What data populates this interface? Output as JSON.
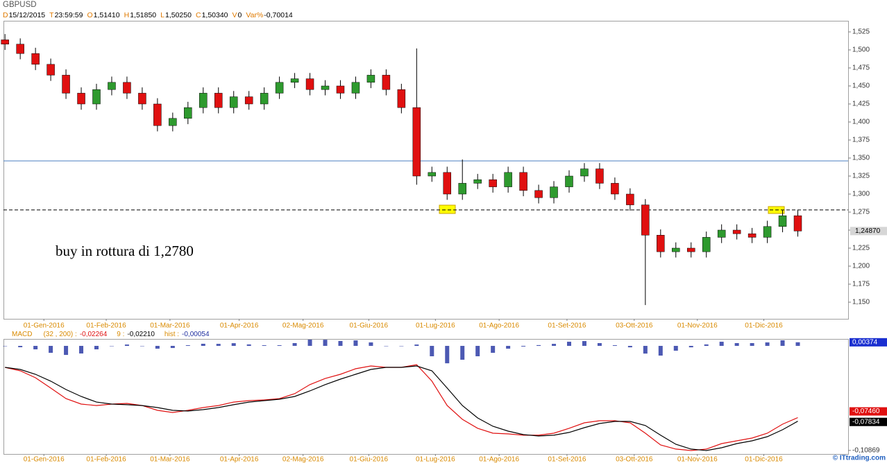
{
  "chart_data": [
    {
      "type": "candlestick",
      "title": "GBPUSD",
      "info": [
        {
          "key": "D",
          "value": "15/12/2015"
        },
        {
          "key": "T",
          "value": "23:59:59"
        },
        {
          "key": "O",
          "value": "1,51410"
        },
        {
          "key": "H",
          "value": "1,51850"
        },
        {
          "key": "L",
          "value": "1,50250"
        },
        {
          "key": "C",
          "value": "1,50340"
        },
        {
          "key": "V",
          "value": "0"
        },
        {
          "key": "Var%",
          "value": "-0,70014"
        }
      ],
      "annotation": "buy in rottura di 1,2780",
      "x": [
        0,
        1,
        2,
        3,
        4,
        5,
        6,
        7,
        8,
        9,
        10,
        11,
        12,
        13,
        14,
        15,
        16,
        17,
        18,
        19,
        20,
        21,
        22,
        23,
        24,
        25,
        26,
        27,
        28,
        29,
        30,
        31,
        32,
        33,
        34,
        35,
        36,
        37,
        38,
        39,
        40,
        41,
        42,
        43,
        44,
        45,
        46,
        47,
        48,
        49,
        50,
        51,
        52
      ],
      "open": [
        1.514,
        1.508,
        1.495,
        1.48,
        1.465,
        1.44,
        1.425,
        1.445,
        1.455,
        1.44,
        1.425,
        1.395,
        1.405,
        1.42,
        1.44,
        1.42,
        1.435,
        1.425,
        1.44,
        1.455,
        1.46,
        1.445,
        1.45,
        1.44,
        1.455,
        1.465,
        1.445,
        1.42,
        1.325,
        1.33,
        1.3,
        1.315,
        1.32,
        1.31,
        1.33,
        1.305,
        1.295,
        1.31,
        1.325,
        1.335,
        1.315,
        1.3,
        1.285,
        1.243,
        1.22,
        1.225,
        1.22,
        1.24,
        1.25,
        1.245,
        1.24,
        1.255,
        1.27
      ],
      "high": [
        1.522,
        1.516,
        1.503,
        1.488,
        1.473,
        1.448,
        1.453,
        1.463,
        1.463,
        1.448,
        1.433,
        1.413,
        1.428,
        1.448,
        1.448,
        1.443,
        1.443,
        1.448,
        1.463,
        1.468,
        1.468,
        1.458,
        1.458,
        1.463,
        1.473,
        1.473,
        1.453,
        1.502,
        1.338,
        1.338,
        1.348,
        1.328,
        1.328,
        1.338,
        1.338,
        1.313,
        1.318,
        1.333,
        1.343,
        1.343,
        1.323,
        1.308,
        1.293,
        1.251,
        1.233,
        1.233,
        1.248,
        1.258,
        1.258,
        1.253,
        1.263,
        1.278,
        1.278
      ],
      "low": [
        1.5,
        1.487,
        1.472,
        1.457,
        1.432,
        1.417,
        1.417,
        1.437,
        1.432,
        1.417,
        1.387,
        1.387,
        1.397,
        1.412,
        1.412,
        1.412,
        1.417,
        1.417,
        1.432,
        1.447,
        1.437,
        1.437,
        1.432,
        1.432,
        1.447,
        1.437,
        1.412,
        1.313,
        1.317,
        1.292,
        1.292,
        1.307,
        1.302,
        1.302,
        1.297,
        1.287,
        1.287,
        1.302,
        1.317,
        1.307,
        1.292,
        1.277,
        1.146,
        1.212,
        1.212,
        1.212,
        1.212,
        1.232,
        1.237,
        1.232,
        1.232,
        1.247,
        1.241
      ],
      "close": [
        1.508,
        1.495,
        1.48,
        1.465,
        1.44,
        1.425,
        1.445,
        1.455,
        1.44,
        1.425,
        1.395,
        1.405,
        1.42,
        1.44,
        1.42,
        1.435,
        1.425,
        1.44,
        1.455,
        1.46,
        1.445,
        1.45,
        1.44,
        1.455,
        1.465,
        1.445,
        1.42,
        1.325,
        1.33,
        1.3,
        1.315,
        1.32,
        1.31,
        1.33,
        1.305,
        1.295,
        1.31,
        1.325,
        1.335,
        1.315,
        1.3,
        1.285,
        1.243,
        1.22,
        1.225,
        1.22,
        1.24,
        1.25,
        1.245,
        1.24,
        1.255,
        1.27,
        1.2487
      ],
      "last_label": "1,24870",
      "up_color": "#2e9a2e",
      "down_color": "#e01010",
      "wick_color": "#000000",
      "hlines": [
        {
          "value": 1.346,
          "color": "#4a7fc0",
          "style": "solid"
        },
        {
          "value": 1.278,
          "color": "#000000",
          "style": "dashed"
        }
      ],
      "xlim": [
        -0.1,
        55.3
      ],
      "ylim": [
        1.1269,
        1.5404
      ],
      "xticks": [
        {
          "value": 2.55,
          "label": "01-Gen-2016"
        },
        {
          "value": 6.64,
          "label": "01-Feb-2016"
        },
        {
          "value": 10.82,
          "label": "01-Mar-2016"
        },
        {
          "value": 15.36,
          "label": "01-Apr-2016"
        },
        {
          "value": 19.55,
          "label": "02-Mag-2016"
        },
        {
          "value": 23.86,
          "label": "01-Giu-2016"
        },
        {
          "value": 28.23,
          "label": "01-Lug-2016"
        },
        {
          "value": 32.41,
          "label": "01-Ago-2016"
        },
        {
          "value": 36.86,
          "label": "01-Set-2016"
        },
        {
          "value": 41.27,
          "label": "03-Ott-2016"
        },
        {
          "value": 45.41,
          "label": "01-Nov-2016"
        },
        {
          "value": 49.77,
          "label": "01-Dic-2016"
        }
      ],
      "yticks": [
        {
          "value": 1.525,
          "label": "1,525"
        },
        {
          "value": 1.5,
          "label": "1,500"
        },
        {
          "value": 1.475,
          "label": "1,475"
        },
        {
          "value": 1.45,
          "label": "1,450"
        },
        {
          "value": 1.425,
          "label": "1,425"
        },
        {
          "value": 1.4,
          "label": "1,400"
        },
        {
          "value": 1.375,
          "label": "1,375"
        },
        {
          "value": 1.35,
          "label": "1,350"
        },
        {
          "value": 1.325,
          "label": "1,325"
        },
        {
          "value": 1.3,
          "label": "1,300"
        },
        {
          "value": 1.275,
          "label": "1,275"
        },
        {
          "value": 1.25,
          "label": "1,250"
        },
        {
          "value": 1.225,
          "label": "1,225"
        },
        {
          "value": 1.2,
          "label": "1,200"
        },
        {
          "value": 1.175,
          "label": "1,175"
        },
        {
          "value": 1.15,
          "label": "1,150"
        }
      ]
    },
    {
      "type": "line",
      "title": "MACD",
      "watermark": "© ITtrading.com",
      "ylim": [
        -0.1124,
        0.0065
      ],
      "yticks": [
        {
          "value": -0.10869,
          "label": "-0,10869"
        }
      ],
      "series": [
        {
          "name": "(32 , 200) :",
          "header_value": "-0,02264",
          "type": "line",
          "color": "#e01010",
          "last_label": "-0,07460",
          "values": [
            -0.0223,
            -0.0259,
            -0.0331,
            -0.0439,
            -0.0548,
            -0.0605,
            -0.062,
            -0.0605,
            -0.0598,
            -0.062,
            -0.067,
            -0.0692,
            -0.067,
            -0.0641,
            -0.062,
            -0.0584,
            -0.0569,
            -0.0562,
            -0.0548,
            -0.0497,
            -0.0403,
            -0.0339,
            -0.0295,
            -0.0238,
            -0.0209,
            -0.0223,
            -0.0223,
            -0.0195,
            -0.0367,
            -0.062,
            -0.0764,
            -0.0857,
            -0.0908,
            -0.0915,
            -0.0929,
            -0.0929,
            -0.0908,
            -0.0857,
            -0.08,
            -0.0778,
            -0.0778,
            -0.08,
            -0.0908,
            -0.103,
            -0.1073,
            -0.1088,
            -0.1073,
            -0.1016,
            -0.0987,
            -0.0958,
            -0.0908,
            -0.0814,
            -0.0746
          ]
        },
        {
          "name": "9 :",
          "header_value": "-0,02210",
          "type": "line",
          "color": "#000000",
          "last_label": "-0,07834",
          "values": [
            -0.0223,
            -0.0245,
            -0.0295,
            -0.0367,
            -0.0454,
            -0.0526,
            -0.0584,
            -0.0605,
            -0.0612,
            -0.062,
            -0.0641,
            -0.067,
            -0.0677,
            -0.0663,
            -0.0641,
            -0.0612,
            -0.0584,
            -0.0569,
            -0.0555,
            -0.0526,
            -0.0468,
            -0.0403,
            -0.0346,
            -0.0295,
            -0.0245,
            -0.0223,
            -0.0223,
            -0.0209,
            -0.0259,
            -0.0439,
            -0.062,
            -0.0749,
            -0.0836,
            -0.0886,
            -0.0922,
            -0.0937,
            -0.0929,
            -0.09,
            -0.085,
            -0.0807,
            -0.0785,
            -0.0785,
            -0.0828,
            -0.0929,
            -0.1023,
            -0.1073,
            -0.1088,
            -0.1059,
            -0.1016,
            -0.0987,
            -0.0944,
            -0.0872,
            -0.07834
          ]
        },
        {
          "name": "hist :",
          "header_value": "-0,00054",
          "type": "bar",
          "color": "#1f2fa0",
          "last_label": "0,00374",
          "values": [
            0,
            -0.0014,
            -0.0036,
            -0.0072,
            -0.0094,
            -0.0079,
            -0.0036,
            0,
            0.0014,
            0,
            -0.0029,
            -0.0022,
            0.0007,
            0.0022,
            0.0021,
            0.0028,
            0.0015,
            0.0007,
            0.0007,
            0.0029,
            0.0065,
            0.0064,
            0.0051,
            0.0057,
            0.0036,
            0,
            0,
            0.0014,
            -0.0108,
            -0.0181,
            -0.0144,
            -0.0108,
            -0.0072,
            -0.0029,
            -0.0007,
            0.0008,
            0.0021,
            0.0043,
            0.005,
            0.0029,
            0.0007,
            -0.0015,
            -0.008,
            -0.0101,
            -0.005,
            -0.0015,
            0.0015,
            0.0043,
            0.0029,
            0.0029,
            0.0036,
            0.0058,
            0.00374
          ]
        }
      ]
    }
  ]
}
